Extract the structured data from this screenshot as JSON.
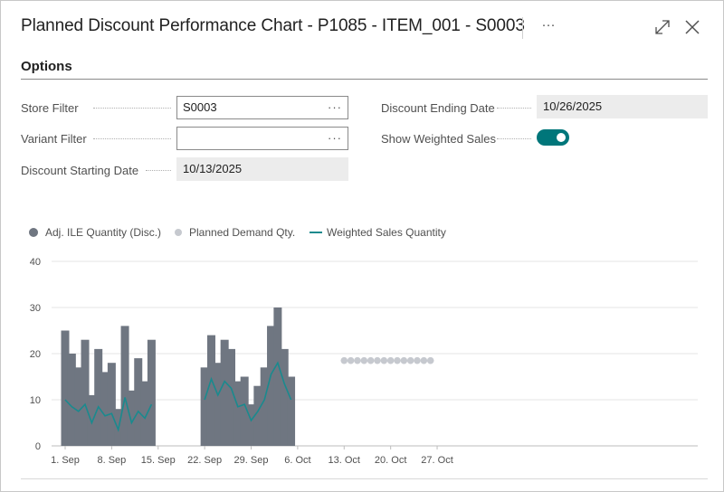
{
  "window": {
    "title": "Planned Discount Performance Chart - P1085 - ITEM_001 - S0003",
    "more_label": "···"
  },
  "options": {
    "section_title": "Options",
    "store_filter": {
      "label": "Store Filter",
      "value": "S0003"
    },
    "variant_filter": {
      "label": "Variant Filter",
      "value": ""
    },
    "discount_starting_date": {
      "label": "Discount Starting Date",
      "value": "10/13/2025"
    },
    "discount_ending_date": {
      "label": "Discount Ending Date",
      "value": "10/26/2025"
    },
    "show_weighted_sales": {
      "label": "Show Weighted Sales",
      "value": true
    }
  },
  "ellipsis": "···",
  "colors": {
    "accent": "#00767a",
    "bar": "#6f7681",
    "planned": "#c6c9cf",
    "line": "#1a8a8e",
    "grid": "#e6e6e6"
  },
  "chart_data": {
    "type": "bar",
    "x_ticks": [
      "1. Sep",
      "8. Sep",
      "15. Sep",
      "22. Sep",
      "29. Sep",
      "6. Oct",
      "13. Oct",
      "20. Oct",
      "27. Oct"
    ],
    "ylim": [
      0,
      40
    ],
    "y_ticks": [
      0,
      10,
      20,
      30,
      40
    ],
    "grid": true,
    "legend_position": "top-left",
    "series": [
      {
        "name": "Adj. ILE Quantity (Disc.)",
        "type": "bar",
        "points": [
          [
            "2025-09-01",
            25
          ],
          [
            "2025-09-02",
            20
          ],
          [
            "2025-09-03",
            17
          ],
          [
            "2025-09-04",
            23
          ],
          [
            "2025-09-05",
            11
          ],
          [
            "2025-09-06",
            21
          ],
          [
            "2025-09-07",
            16
          ],
          [
            "2025-09-08",
            18
          ],
          [
            "2025-09-09",
            8
          ],
          [
            "2025-09-10",
            26
          ],
          [
            "2025-09-11",
            12
          ],
          [
            "2025-09-12",
            19
          ],
          [
            "2025-09-13",
            14
          ],
          [
            "2025-09-14",
            23
          ],
          [
            "2025-09-22",
            17
          ],
          [
            "2025-09-23",
            24
          ],
          [
            "2025-09-24",
            18
          ],
          [
            "2025-09-25",
            23
          ],
          [
            "2025-09-26",
            21
          ],
          [
            "2025-09-27",
            14
          ],
          [
            "2025-09-28",
            15
          ],
          [
            "2025-09-29",
            9
          ],
          [
            "2025-09-30",
            13
          ],
          [
            "2025-10-01",
            17
          ],
          [
            "2025-10-02",
            26
          ],
          [
            "2025-10-03",
            30
          ],
          [
            "2025-10-04",
            21
          ],
          [
            "2025-10-05",
            15
          ]
        ]
      },
      {
        "name": "Planned Demand Qty.",
        "type": "scatter",
        "points": [
          [
            "2025-10-13",
            18.5
          ],
          [
            "2025-10-14",
            18.5
          ],
          [
            "2025-10-15",
            18.5
          ],
          [
            "2025-10-16",
            18.5
          ],
          [
            "2025-10-17",
            18.5
          ],
          [
            "2025-10-18",
            18.5
          ],
          [
            "2025-10-19",
            18.5
          ],
          [
            "2025-10-20",
            18.5
          ],
          [
            "2025-10-21",
            18.5
          ],
          [
            "2025-10-22",
            18.5
          ],
          [
            "2025-10-23",
            18.5
          ],
          [
            "2025-10-24",
            18.5
          ],
          [
            "2025-10-25",
            18.5
          ],
          [
            "2025-10-26",
            18.5
          ]
        ]
      },
      {
        "name": "Weighted Sales Quantity",
        "type": "line",
        "segments": [
          [
            [
              "2025-09-01",
              10
            ],
            [
              "2025-09-02",
              8.5
            ],
            [
              "2025-09-03",
              7.5
            ],
            [
              "2025-09-04",
              9
            ],
            [
              "2025-09-05",
              5
            ],
            [
              "2025-09-06",
              8.5
            ],
            [
              "2025-09-07",
              6.5
            ],
            [
              "2025-09-08",
              7
            ],
            [
              "2025-09-09",
              3.5
            ],
            [
              "2025-09-10",
              10.5
            ],
            [
              "2025-09-11",
              5
            ],
            [
              "2025-09-12",
              7.5
            ],
            [
              "2025-09-13",
              6
            ],
            [
              "2025-09-14",
              9
            ]
          ],
          [
            [
              "2025-09-22",
              10
            ],
            [
              "2025-09-23",
              14.5
            ],
            [
              "2025-09-24",
              11
            ],
            [
              "2025-09-25",
              14
            ],
            [
              "2025-09-26",
              12.5
            ],
            [
              "2025-09-27",
              8.5
            ],
            [
              "2025-09-28",
              9
            ],
            [
              "2025-09-29",
              5.5
            ],
            [
              "2025-09-30",
              7.5
            ],
            [
              "2025-10-01",
              10
            ],
            [
              "2025-10-02",
              15.5
            ],
            [
              "2025-10-03",
              18
            ],
            [
              "2025-10-04",
              13.5
            ],
            [
              "2025-10-05",
              10
            ]
          ]
        ]
      }
    ]
  }
}
